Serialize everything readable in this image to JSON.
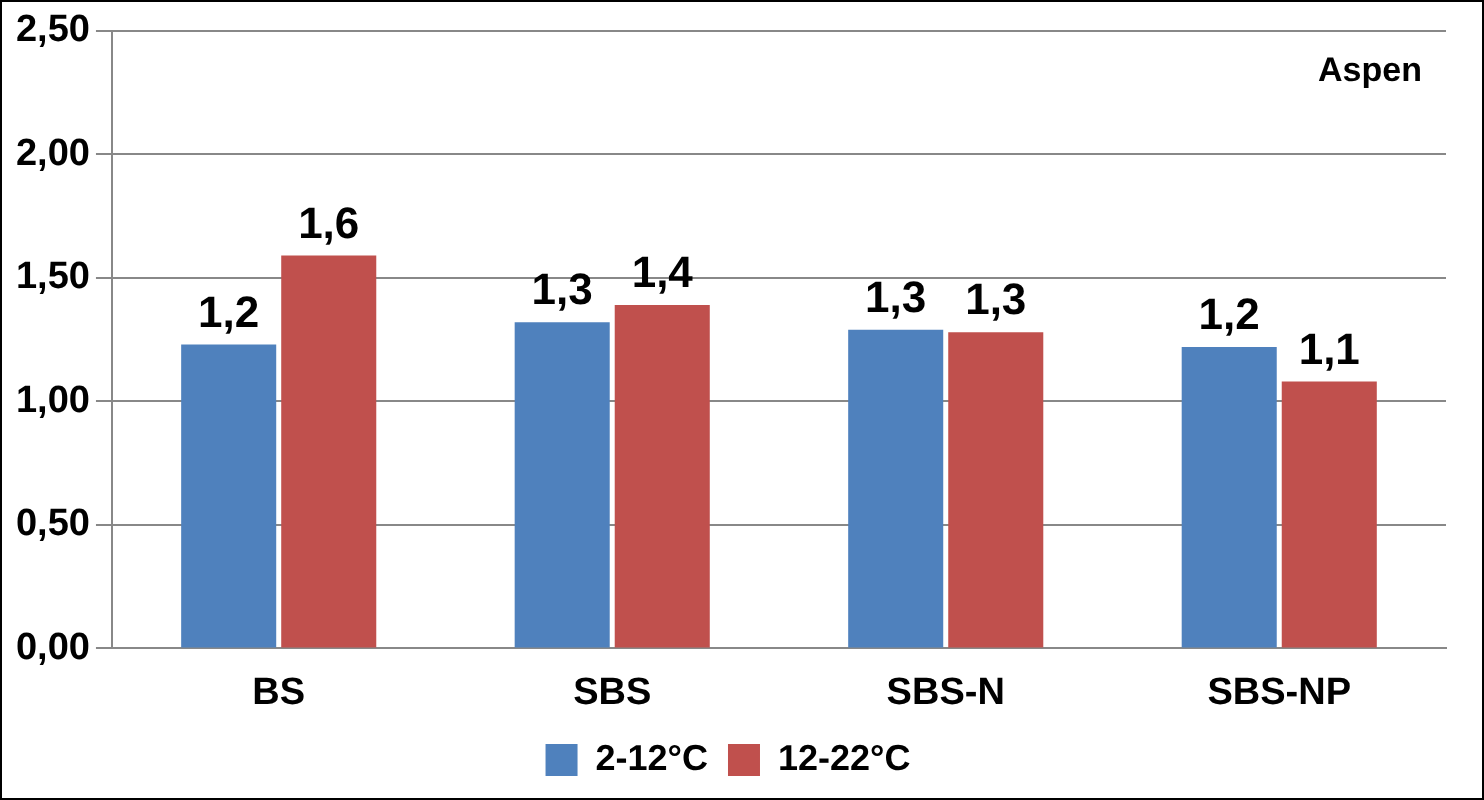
{
  "chart_data": {
    "type": "bar",
    "categories": [
      "BS",
      "SBS",
      "SBS-N",
      "SBS-NP"
    ],
    "series": [
      {
        "name": "2-12°C",
        "color": "#4f81bd",
        "values": [
          1.23,
          1.32,
          1.29,
          1.22
        ],
        "value_labels": [
          "1,2",
          "1,3",
          "1,3",
          "1,2"
        ]
      },
      {
        "name": "12-22°C",
        "color": "#c0504d",
        "values": [
          1.59,
          1.39,
          1.28,
          1.08
        ],
        "value_labels": [
          "1,6",
          "1,4",
          "1,3",
          "1,1"
        ]
      }
    ],
    "ylim": [
      0,
      2.5
    ],
    "yticks": [
      {
        "value": 0,
        "label": "0,00"
      },
      {
        "value": 0.5,
        "label": "0,50"
      },
      {
        "value": 1,
        "label": "1,00"
      },
      {
        "value": 1.5,
        "label": "1,50"
      },
      {
        "value": 2,
        "label": "2,00"
      },
      {
        "value": 2.5,
        "label": "2,50"
      }
    ],
    "grid": "y",
    "legend": "bottom",
    "annotations": [
      "Aspen"
    ]
  }
}
